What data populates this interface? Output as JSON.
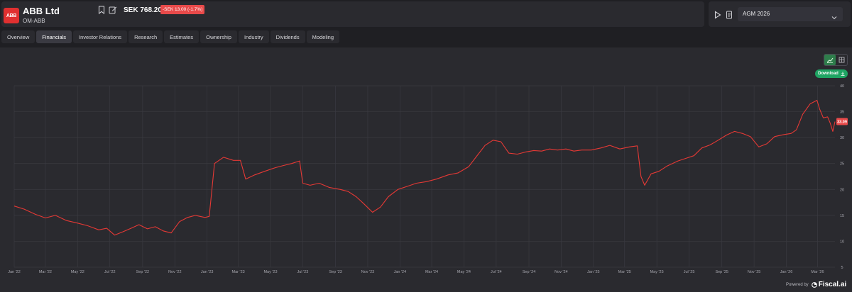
{
  "header": {
    "company_name": "ABB Ltd",
    "ticker": "OM-ABB",
    "logo_text": "ABB",
    "price": "SEK 768.20",
    "change": "-SEK 13.00 (-1.7%)",
    "icons": [
      "bookmark-icon",
      "edit-icon"
    ]
  },
  "agm": {
    "selected": "AGM 2026",
    "icons": [
      "play-icon",
      "document-icon",
      "chevron-down-icon"
    ]
  },
  "tabs": [
    {
      "label": "Overview",
      "active": false
    },
    {
      "label": "Financials",
      "active": true
    },
    {
      "label": "Investor Relations",
      "active": false
    },
    {
      "label": "Research",
      "active": false
    },
    {
      "label": "Estimates",
      "active": false
    },
    {
      "label": "Ownership",
      "active": false
    },
    {
      "label": "Industry",
      "active": false
    },
    {
      "label": "Dividends",
      "active": false
    },
    {
      "label": "Modeling",
      "active": false
    }
  ],
  "toolbar": {
    "download_label": "Download",
    "view_modes": [
      "line-chart-icon",
      "table-grid-icon"
    ],
    "active_view": "line-chart-icon"
  },
  "footer": {
    "powered_by": "Powered by",
    "brand": "Fiscal.ai"
  },
  "colors": {
    "line": "#e53935",
    "badge": "#e84a4a",
    "download": "#1fa463",
    "background": "#2a2a2f"
  },
  "chart_data": {
    "type": "line",
    "x_tick_labels": [
      "Jan '22",
      "Mar '22",
      "May '22",
      "Jul '22",
      "Sep '22",
      "Nov '22",
      "Jan '23",
      "Mar '23",
      "May '23",
      "Jul '23",
      "Sep '23",
      "Nov '23",
      "Jan '24",
      "Mar '24",
      "May '24",
      "Jul '24",
      "Sep '24",
      "Nov '24",
      "Jan '25",
      "Mar '25",
      "May '25",
      "Jul '25",
      "Sep '25",
      "Nov '25",
      "Jan '26",
      "Mar '26"
    ],
    "y_ticks": [
      5,
      10,
      15,
      20,
      25,
      30,
      35,
      40
    ],
    "ylim": [
      5,
      40
    ],
    "last_value_label": "33.09",
    "grid": true,
    "series": [
      {
        "x": [
          "2022-01-01",
          "2022-01-20",
          "2022-02-10",
          "2022-03-01",
          "2022-03-20",
          "2022-04-10",
          "2022-05-01",
          "2022-05-20",
          "2022-06-10",
          "2022-06-25",
          "2022-07-10",
          "2022-07-25",
          "2022-08-10",
          "2022-08-25",
          "2022-09-10",
          "2022-09-25",
          "2022-10-10",
          "2022-10-25",
          "2022-11-10",
          "2022-11-25",
          "2022-12-10",
          "2022-12-28",
          "2023-01-05",
          "2023-01-15",
          "2023-02-01",
          "2023-02-20",
          "2023-03-05",
          "2023-03-15",
          "2023-04-01",
          "2023-04-20",
          "2023-05-10",
          "2023-05-25",
          "2023-06-10",
          "2023-06-25",
          "2023-07-01",
          "2023-07-15",
          "2023-08-01",
          "2023-08-20",
          "2023-09-10",
          "2023-09-25",
          "2023-10-10",
          "2023-10-25",
          "2023-11-10",
          "2023-11-25",
          "2023-12-10",
          "2023-12-28",
          "2024-01-15",
          "2024-02-01",
          "2024-02-20",
          "2024-03-10",
          "2024-04-01",
          "2024-04-20",
          "2024-05-10",
          "2024-05-25",
          "2024-06-10",
          "2024-06-25",
          "2024-07-10",
          "2024-07-25",
          "2024-08-10",
          "2024-08-25",
          "2024-09-10",
          "2024-09-25",
          "2024-10-10",
          "2024-10-25",
          "2024-11-10",
          "2024-11-25",
          "2024-12-10",
          "2024-12-28",
          "2025-01-15",
          "2025-02-01",
          "2025-02-20",
          "2025-03-10",
          "2025-03-25",
          "2025-04-01",
          "2025-04-08",
          "2025-04-20",
          "2025-05-05",
          "2025-05-20",
          "2025-06-10",
          "2025-06-25",
          "2025-07-10",
          "2025-07-25",
          "2025-08-10",
          "2025-08-25",
          "2025-09-10",
          "2025-09-25",
          "2025-10-10",
          "2025-10-25",
          "2025-11-10",
          "2025-11-25",
          "2025-12-10",
          "2025-12-28",
          "2026-01-10",
          "2026-01-20",
          "2026-02-01",
          "2026-02-15",
          "2026-02-28",
          "2026-03-05",
          "2026-03-12",
          "2026-03-20",
          "2026-03-25",
          "2026-03-30",
          "2026-04-03"
        ],
        "values": [
          16.8,
          16.2,
          15.2,
          14.5,
          15.0,
          14.0,
          13.5,
          13.0,
          12.2,
          12.5,
          11.2,
          11.8,
          12.5,
          13.2,
          12.4,
          12.8,
          12.0,
          11.6,
          13.8,
          14.6,
          15.0,
          14.6,
          14.8,
          25.0,
          26.2,
          25.6,
          25.6,
          22.0,
          22.8,
          23.5,
          24.2,
          24.6,
          25.0,
          25.5,
          21.2,
          20.8,
          21.2,
          20.4,
          20.0,
          19.6,
          18.6,
          17.2,
          15.6,
          16.6,
          18.6,
          20.0,
          20.6,
          21.2,
          21.5,
          22.0,
          22.8,
          23.2,
          24.4,
          26.4,
          28.5,
          29.5,
          29.2,
          27.0,
          26.8,
          27.2,
          27.5,
          27.4,
          27.8,
          27.6,
          27.8,
          27.4,
          27.6,
          27.6,
          28.0,
          28.5,
          27.8,
          28.2,
          28.4,
          22.5,
          20.8,
          23.0,
          23.5,
          24.5,
          25.5,
          26.0,
          26.5,
          28.0,
          28.6,
          29.5,
          30.5,
          31.2,
          30.8,
          30.2,
          28.2,
          28.8,
          30.2,
          30.6,
          30.8,
          31.5,
          34.5,
          36.5,
          37.2,
          35.5,
          33.8,
          34.0,
          32.8,
          31.2,
          33.09
        ]
      }
    ]
  }
}
